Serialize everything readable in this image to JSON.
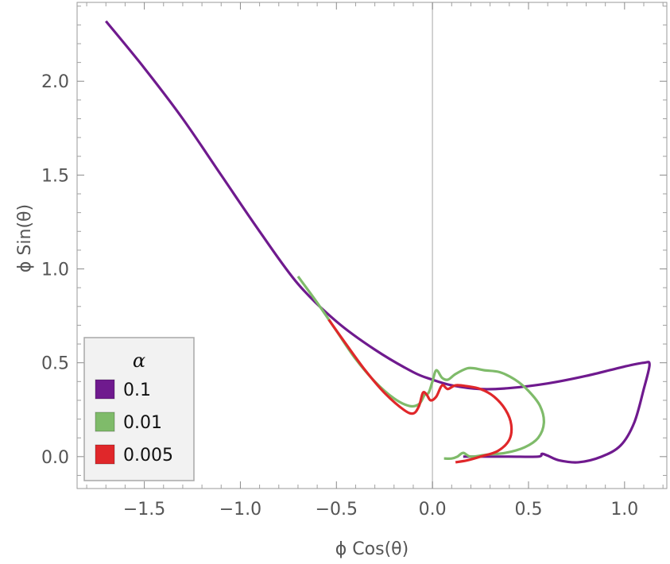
{
  "chart_data": {
    "type": "line",
    "title": "",
    "xlabel": "ϕ Cos(θ)",
    "ylabel": "ϕ Sin(θ)",
    "xlim": [
      -1.85,
      1.22
    ],
    "ylim": [
      -0.17,
      2.42
    ],
    "x_ticks": [
      -1.5,
      -1.0,
      -0.5,
      0.0,
      0.5,
      1.0
    ],
    "x_tick_labels": [
      "−1.5",
      "−1.0",
      "−0.5",
      "0.0",
      "0.5",
      "1.0"
    ],
    "y_ticks": [
      0.0,
      0.5,
      1.0,
      1.5,
      2.0
    ],
    "y_tick_labels": [
      "0.0",
      "0.5",
      "1.0",
      "1.5",
      "2.0"
    ],
    "grid": false,
    "zero_line": "vertical at x = 0",
    "legend_title": "α",
    "legend_position": "bottom-left",
    "series": [
      {
        "name": "0.1",
        "color": "#6f1a8e",
        "points": [
          [
            -1.7,
            2.32
          ],
          [
            -1.5,
            2.07
          ],
          [
            -1.3,
            1.8
          ],
          [
            -1.1,
            1.5
          ],
          [
            -0.9,
            1.2
          ],
          [
            -0.7,
            0.92
          ],
          [
            -0.5,
            0.72
          ],
          [
            -0.3,
            0.57
          ],
          [
            -0.1,
            0.45
          ],
          [
            0.0,
            0.41
          ],
          [
            0.1,
            0.38
          ],
          [
            0.25,
            0.36
          ],
          [
            0.4,
            0.365
          ],
          [
            0.6,
            0.39
          ],
          [
            0.8,
            0.43
          ],
          [
            1.0,
            0.48
          ],
          [
            1.1,
            0.5
          ],
          [
            1.13,
            0.49
          ],
          [
            1.1,
            0.36
          ],
          [
            1.05,
            0.18
          ],
          [
            0.98,
            0.06
          ],
          [
            0.88,
            0.0
          ],
          [
            0.76,
            -0.03
          ],
          [
            0.66,
            -0.02
          ],
          [
            0.6,
            0.005
          ],
          [
            0.57,
            0.015
          ],
          [
            0.55,
            0.0
          ],
          [
            0.4,
            0.0
          ],
          [
            0.25,
            0.0
          ],
          [
            0.16,
            0.0
          ]
        ]
      },
      {
        "name": "0.01",
        "color": "#7fbb6a",
        "points": [
          [
            -0.7,
            0.96
          ],
          [
            -0.6,
            0.82
          ],
          [
            -0.5,
            0.67
          ],
          [
            -0.4,
            0.52
          ],
          [
            -0.3,
            0.4
          ],
          [
            -0.2,
            0.31
          ],
          [
            -0.12,
            0.27
          ],
          [
            -0.07,
            0.28
          ],
          [
            -0.04,
            0.33
          ],
          [
            -0.02,
            0.34
          ],
          [
            0.0,
            0.4
          ],
          [
            0.02,
            0.46
          ],
          [
            0.05,
            0.42
          ],
          [
            0.08,
            0.41
          ],
          [
            0.12,
            0.44
          ],
          [
            0.18,
            0.47
          ],
          [
            0.22,
            0.47
          ],
          [
            0.27,
            0.46
          ],
          [
            0.35,
            0.45
          ],
          [
            0.43,
            0.41
          ],
          [
            0.5,
            0.35
          ],
          [
            0.56,
            0.27
          ],
          [
            0.58,
            0.18
          ],
          [
            0.55,
            0.1
          ],
          [
            0.48,
            0.05
          ],
          [
            0.38,
            0.02
          ],
          [
            0.28,
            0.01
          ],
          [
            0.2,
            0.0
          ],
          [
            0.16,
            0.02
          ],
          [
            0.13,
            0.0
          ],
          [
            0.1,
            -0.01
          ],
          [
            0.06,
            -0.01
          ]
        ]
      },
      {
        "name": "0.005",
        "color": "#e0272a",
        "points": [
          [
            -0.54,
            0.73
          ],
          [
            -0.45,
            0.6
          ],
          [
            -0.35,
            0.46
          ],
          [
            -0.25,
            0.34
          ],
          [
            -0.15,
            0.25
          ],
          [
            -0.1,
            0.23
          ],
          [
            -0.07,
            0.27
          ],
          [
            -0.05,
            0.34
          ],
          [
            -0.03,
            0.33
          ],
          [
            -0.01,
            0.3
          ],
          [
            0.02,
            0.32
          ],
          [
            0.05,
            0.38
          ],
          [
            0.08,
            0.36
          ],
          [
            0.12,
            0.38
          ],
          [
            0.18,
            0.375
          ],
          [
            0.25,
            0.36
          ],
          [
            0.32,
            0.32
          ],
          [
            0.38,
            0.25
          ],
          [
            0.41,
            0.17
          ],
          [
            0.4,
            0.09
          ],
          [
            0.34,
            0.03
          ],
          [
            0.25,
            0.0
          ],
          [
            0.18,
            -0.02
          ],
          [
            0.12,
            -0.03
          ]
        ]
      }
    ]
  }
}
